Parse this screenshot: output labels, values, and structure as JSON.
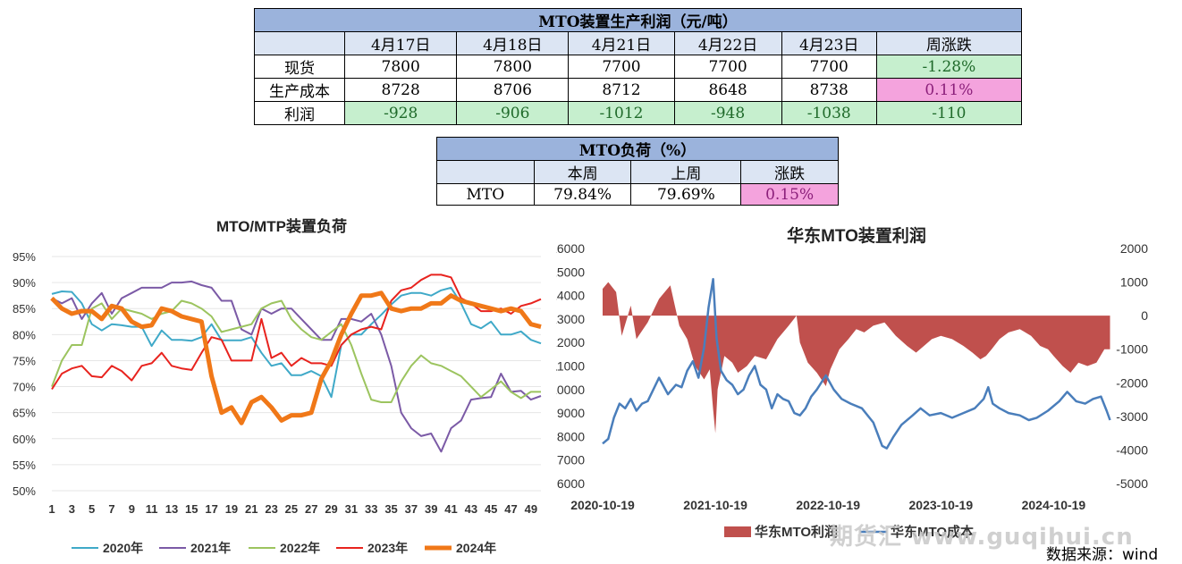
{
  "profit_table": {
    "title": "MTO装置生产利润（元/吨）",
    "headers": [
      "",
      "4月17日",
      "4月18日",
      "4月21日",
      "4月22日",
      "4月23日",
      "周涨跌"
    ],
    "rows": [
      {
        "label": "现货",
        "values": [
          "7800",
          "7800",
          "7700",
          "7700",
          "7700"
        ],
        "change": "-1.28%"
      },
      {
        "label": "生产成本",
        "values": [
          "8728",
          "8706",
          "8712",
          "8648",
          "8738"
        ],
        "change": "0.11%"
      },
      {
        "label": "利润",
        "values": [
          "-928",
          "-906",
          "-1012",
          "-948",
          "-1038"
        ],
        "change": "-110"
      }
    ]
  },
  "load_table": {
    "title": "MTO负荷（%）",
    "headers": [
      "",
      "本周",
      "上周",
      "涨跌"
    ],
    "row": {
      "label": "MTO",
      "this_week": "79.84%",
      "last_week": "79.69%",
      "change": "0.15%"
    }
  },
  "chart_data": [
    {
      "type": "line",
      "title": "MTO/MTP装置负荷",
      "xlabel": "",
      "ylabel": "",
      "x_ticks": [
        "1",
        "3",
        "5",
        "7",
        "9",
        "11",
        "13",
        "15",
        "17",
        "19",
        "21",
        "23",
        "25",
        "27",
        "29",
        "31",
        "33",
        "35",
        "37",
        "39",
        "41",
        "43",
        "45",
        "47",
        "49"
      ],
      "y_ticks": [
        "50%",
        "55%",
        "60%",
        "65%",
        "70%",
        "75%",
        "80%",
        "85%",
        "90%",
        "95%"
      ],
      "ylim": [
        50,
        95
      ],
      "xlim": [
        1,
        50
      ],
      "series": [
        {
          "name": "2020年",
          "color": "#3fa9c8",
          "width": 2,
          "values": [
            87.8,
            88.3,
            88.2,
            86.0,
            82.0,
            80.8,
            82.0,
            81.8,
            81.5,
            81.5,
            77.8,
            80.8,
            79.0,
            79.0,
            78.8,
            79.5,
            82.0,
            78.9,
            78.9,
            78.9,
            79.5,
            76.5,
            74.0,
            74.5,
            72.2,
            72.2,
            73.0,
            72.0,
            68.0,
            78.0,
            80.0,
            80.0,
            82.0,
            83.8,
            85.8,
            87.5,
            88.0,
            88.0,
            87.5,
            88.5,
            89.0,
            86.0,
            82.0,
            81.2,
            82.5,
            80.0,
            80.0,
            80.6,
            79.0,
            78.3
          ]
        },
        {
          "name": "2021年",
          "color": "#7b5aa6",
          "width": 2,
          "values": [
            87.0,
            86.0,
            87.0,
            83.0,
            86.0,
            88.0,
            84.0,
            87.0,
            88.0,
            89.0,
            89.0,
            89.0,
            90.0,
            90.0,
            90.2,
            89.5,
            89.0,
            86.5,
            86.5,
            81.0,
            80.0,
            85.0,
            84.0,
            85.0,
            85.0,
            83.0,
            81.0,
            79.0,
            79.0,
            83.0,
            83.0,
            82.5,
            84.0,
            80.0,
            74.0,
            65.0,
            62.0,
            60.5,
            61.0,
            57.5,
            62.0,
            63.5,
            67.5,
            67.8,
            68.0,
            72.5,
            69.0,
            69.2,
            67.5,
            68.2
          ]
        },
        {
          "name": "2022年",
          "color": "#9cc45f",
          "width": 2,
          "values": [
            70.0,
            75.0,
            78.0,
            78.0,
            85.0,
            86.0,
            83.0,
            85.0,
            84.5,
            84.0,
            83.0,
            84.0,
            84.5,
            86.5,
            86.0,
            85.0,
            83.5,
            80.5,
            81.0,
            81.5,
            82.0,
            85.0,
            86.0,
            86.5,
            83.0,
            81.0,
            79.5,
            79.0,
            80.5,
            82.0,
            78.0,
            72.5,
            67.5,
            67.0,
            67.0,
            71.0,
            74.0,
            76.0,
            74.5,
            74.0,
            73.0,
            72.0,
            70.0,
            68.0,
            69.5,
            71.0,
            69.0,
            67.8,
            69.0,
            69.0
          ]
        },
        {
          "name": "2023年",
          "color": "#e8231e",
          "width": 2,
          "values": [
            69.5,
            72.5,
            73.5,
            74.0,
            72.0,
            71.8,
            74.0,
            73.0,
            71.2,
            74.0,
            74.5,
            76.5,
            74.0,
            73.5,
            73.2,
            76.5,
            79.5,
            79.0,
            75.0,
            75.0,
            75.0,
            83.0,
            75.5,
            76.5,
            74.0,
            75.5,
            74.5,
            74.5,
            74.0,
            78.0,
            80.0,
            81.0,
            81.5,
            81.0,
            86.5,
            88.5,
            89.0,
            90.5,
            91.5,
            91.5,
            91.0,
            87.0,
            86.0,
            84.5,
            84.5,
            85.0,
            84.0,
            85.5,
            86.0,
            86.8
          ]
        },
        {
          "name": "2024年",
          "color": "#f07818",
          "width": 5,
          "values": [
            87.0,
            85.0,
            84.0,
            84.5,
            84.5,
            83.0,
            85.5,
            85.0,
            82.5,
            81.5,
            81.8,
            85.0,
            84.5,
            83.5,
            83.0,
            82.5,
            72.0,
            65.0,
            66.0,
            63.0,
            67.0,
            68.0,
            66.0,
            63.5,
            64.5,
            64.5,
            65.0,
            71.5,
            75.0,
            80.0,
            84.0,
            87.5,
            87.5,
            88.0,
            85.0,
            84.5,
            85.0,
            85.0,
            86.0,
            86.0,
            87.5,
            86.5,
            86.0,
            85.5,
            85.0,
            84.5,
            85.0,
            84.5,
            82.0,
            81.5
          ]
        }
      ],
      "legend": [
        "2020年",
        "2021年",
        "2022年",
        "2023年",
        "2024年"
      ],
      "legend_position": "bottom"
    },
    {
      "type": "area+line",
      "title": "华东MTO装置利润",
      "xlabel": "",
      "ylabel": "",
      "x_ticks": [
        "2020-10-19",
        "2021-10-19",
        "2022-10-19",
        "2023-10-19",
        "2024-10-19"
      ],
      "left_axis": {
        "ticks": [
          "6000",
          "7000",
          "8000",
          "9000",
          "10000",
          "11000",
          "12000",
          "13000",
          "14000",
          "15000",
          "16000"
        ],
        "min": 6000,
        "max": 16000
      },
      "right_axis": {
        "ticks": [
          "-5000",
          "-4000",
          "-3000",
          "-2000",
          "-1000",
          "0",
          "1000",
          "2000"
        ],
        "min": -5000,
        "max": 2000
      },
      "series": [
        {
          "name": "华东MTO利润",
          "axis": "right",
          "kind": "area",
          "color": "#c0504d",
          "points": [
            [
              2020.8,
              0
            ],
            [
              2020.8,
              800
            ],
            [
              2020.85,
              1000
            ],
            [
              2020.92,
              700
            ],
            [
              2020.97,
              -600
            ],
            [
              2021.05,
              300
            ],
            [
              2021.1,
              -700
            ],
            [
              2021.2,
              -200
            ],
            [
              2021.3,
              500
            ],
            [
              2021.4,
              900
            ],
            [
              2021.48,
              -300
            ],
            [
              2021.55,
              -700
            ],
            [
              2021.62,
              -1500
            ],
            [
              2021.7,
              -1900
            ],
            [
              2021.75,
              -1600
            ],
            [
              2021.78,
              -2800
            ],
            [
              2021.8,
              -3500
            ],
            [
              2021.82,
              -2200
            ],
            [
              2021.88,
              -1200
            ],
            [
              2021.95,
              -1400
            ],
            [
              2022.0,
              -1700
            ],
            [
              2022.08,
              -1500
            ],
            [
              2022.15,
              -1200
            ],
            [
              2022.25,
              -1300
            ],
            [
              2022.35,
              -700
            ],
            [
              2022.45,
              -300
            ],
            [
              2022.52,
              0
            ],
            [
              2022.55,
              -800
            ],
            [
              2022.62,
              -1400
            ],
            [
              2022.7,
              -1700
            ],
            [
              2022.78,
              -2100
            ],
            [
              2022.82,
              -1600
            ],
            [
              2022.9,
              -1000
            ],
            [
              2022.98,
              -700
            ],
            [
              2023.05,
              -400
            ],
            [
              2023.12,
              -500
            ],
            [
              2023.2,
              -300
            ],
            [
              2023.3,
              -200
            ],
            [
              2023.4,
              -600
            ],
            [
              2023.5,
              -900
            ],
            [
              2023.58,
              -1100
            ],
            [
              2023.65,
              -900
            ],
            [
              2023.72,
              -700
            ],
            [
              2023.8,
              -600
            ],
            [
              2023.9,
              -700
            ],
            [
              2024.0,
              -900
            ],
            [
              2024.08,
              -1100
            ],
            [
              2024.15,
              -1300
            ],
            [
              2024.2,
              -1200
            ],
            [
              2024.25,
              -1000
            ],
            [
              2024.32,
              -700
            ],
            [
              2024.4,
              -500
            ],
            [
              2024.5,
              -400
            ],
            [
              2024.6,
              -600
            ],
            [
              2024.68,
              -900
            ],
            [
              2024.75,
              -1000
            ],
            [
              2024.8,
              -1200
            ],
            [
              2024.88,
              -1500
            ],
            [
              2024.95,
              -1700
            ],
            [
              2025.02,
              -1400
            ],
            [
              2025.1,
              -1500
            ],
            [
              2025.18,
              -1400
            ],
            [
              2025.25,
              -1000
            ],
            [
              2025.3,
              -1000
            ],
            [
              2025.3,
              0
            ]
          ]
        },
        {
          "name": "华东MTO成本",
          "axis": "left",
          "kind": "line",
          "color": "#4a7ebb",
          "points": [
            [
              2020.8,
              7700
            ],
            [
              2020.85,
              7900
            ],
            [
              2020.9,
              8800
            ],
            [
              2020.95,
              9400
            ],
            [
              2021.0,
              9200
            ],
            [
              2021.05,
              9600
            ],
            [
              2021.1,
              9100
            ],
            [
              2021.15,
              9400
            ],
            [
              2021.2,
              9500
            ],
            [
              2021.3,
              10500
            ],
            [
              2021.38,
              9800
            ],
            [
              2021.45,
              10200
            ],
            [
              2021.5,
              10100
            ],
            [
              2021.55,
              10800
            ],
            [
              2021.6,
              11200
            ],
            [
              2021.65,
              10500
            ],
            [
              2021.7,
              11800
            ],
            [
              2021.74,
              13500
            ],
            [
              2021.78,
              14700
            ],
            [
              2021.81,
              12200
            ],
            [
              2021.85,
              10800
            ],
            [
              2021.9,
              10400
            ],
            [
              2021.95,
              10200
            ],
            [
              2022.0,
              9800
            ],
            [
              2022.05,
              10000
            ],
            [
              2022.1,
              10600
            ],
            [
              2022.15,
              11000
            ],
            [
              2022.2,
              10200
            ],
            [
              2022.25,
              10000
            ],
            [
              2022.3,
              9200
            ],
            [
              2022.35,
              9800
            ],
            [
              2022.4,
              9600
            ],
            [
              2022.45,
              9500
            ],
            [
              2022.5,
              9000
            ],
            [
              2022.55,
              8900
            ],
            [
              2022.6,
              9200
            ],
            [
              2022.65,
              9700
            ],
            [
              2022.7,
              10000
            ],
            [
              2022.78,
              10600
            ],
            [
              2022.85,
              10000
            ],
            [
              2022.92,
              9600
            ],
            [
              2023.0,
              9400
            ],
            [
              2023.1,
              9200
            ],
            [
              2023.2,
              8600
            ],
            [
              2023.28,
              7600
            ],
            [
              2023.32,
              7500
            ],
            [
              2023.38,
              8000
            ],
            [
              2023.45,
              8500
            ],
            [
              2023.55,
              8900
            ],
            [
              2023.62,
              9200
            ],
            [
              2023.7,
              8900
            ],
            [
              2023.8,
              9000
            ],
            [
              2023.9,
              8800
            ],
            [
              2024.0,
              9000
            ],
            [
              2024.1,
              9200
            ],
            [
              2024.18,
              9600
            ],
            [
              2024.22,
              10100
            ],
            [
              2024.26,
              9400
            ],
            [
              2024.32,
              9200
            ],
            [
              2024.4,
              9000
            ],
            [
              2024.5,
              8900
            ],
            [
              2024.58,
              8700
            ],
            [
              2024.65,
              8800
            ],
            [
              2024.75,
              9100
            ],
            [
              2024.85,
              9500
            ],
            [
              2024.92,
              9900
            ],
            [
              2025.0,
              9500
            ],
            [
              2025.08,
              9400
            ],
            [
              2025.15,
              9600
            ],
            [
              2025.22,
              9700
            ],
            [
              2025.27,
              9100
            ],
            [
              2025.3,
              8700
            ]
          ]
        }
      ],
      "legend": [
        "华东MTO利润",
        "华东MTO成本"
      ],
      "legend_position": "bottom"
    }
  ],
  "watermark": "期货汇 www.guqihui.cn",
  "source_note": "数据来源：wind"
}
